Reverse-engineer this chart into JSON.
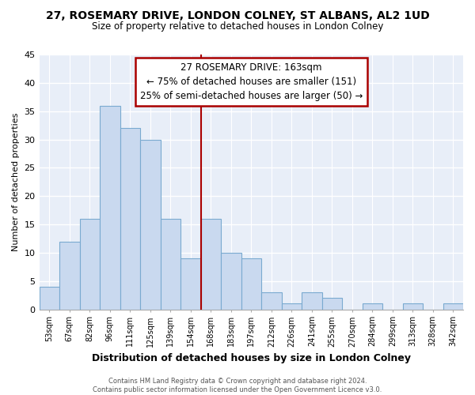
{
  "title": "27, ROSEMARY DRIVE, LONDON COLNEY, ST ALBANS, AL2 1UD",
  "subtitle": "Size of property relative to detached houses in London Colney",
  "xlabel": "Distribution of detached houses by size in London Colney",
  "ylabel": "Number of detached properties",
  "bar_labels": [
    "53sqm",
    "67sqm",
    "82sqm",
    "96sqm",
    "111sqm",
    "125sqm",
    "139sqm",
    "154sqm",
    "168sqm",
    "183sqm",
    "197sqm",
    "212sqm",
    "226sqm",
    "241sqm",
    "255sqm",
    "270sqm",
    "284sqm",
    "299sqm",
    "313sqm",
    "328sqm",
    "342sqm"
  ],
  "bar_values": [
    4,
    12,
    16,
    36,
    32,
    30,
    16,
    9,
    16,
    10,
    9,
    3,
    1,
    3,
    2,
    0,
    1,
    0,
    1,
    0,
    1
  ],
  "bar_color": "#c9d9ef",
  "bar_edge_color": "#7aaad0",
  "vline_x": 7.5,
  "vline_color": "#aa0000",
  "annotation_title": "27 ROSEMARY DRIVE: 163sqm",
  "annotation_line1": "← 75% of detached houses are smaller (151)",
  "annotation_line2": "25% of semi-detached houses are larger (50) →",
  "annotation_box_edge": "#aa0000",
  "ylim": [
    0,
    45
  ],
  "yticks": [
    0,
    5,
    10,
    15,
    20,
    25,
    30,
    35,
    40,
    45
  ],
  "footer1": "Contains HM Land Registry data © Crown copyright and database right 2024.",
  "footer2": "Contains public sector information licensed under the Open Government Licence v3.0.",
  "bg_color": "#ffffff",
  "plot_bg_color": "#e8eef8"
}
